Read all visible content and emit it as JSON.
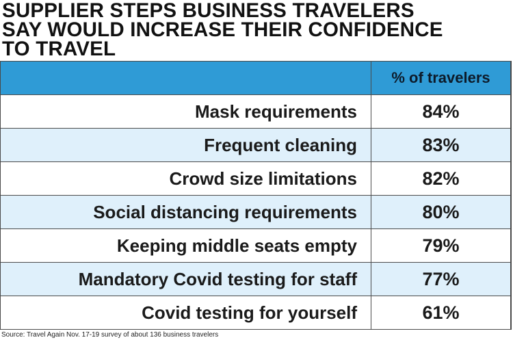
{
  "title_lines": [
    "SUPPLIER STEPS BUSINESS TRAVELERS",
    "SAY WOULD INCREASE THEIR CONFIDENCE",
    "TO TRAVEL"
  ],
  "colors": {
    "header_fill": "#2f9bd6",
    "alt_row_fill": "#dff0fb",
    "border": "#4a4a4a"
  },
  "chart_data": {
    "type": "table",
    "title": "SUPPLIER STEPS BUSINESS TRAVELERS SAY WOULD INCREASE THEIR CONFIDENCE TO TRAVEL",
    "columns": [
      "",
      "% of travelers"
    ],
    "rows": [
      {
        "label": "Mask requirements",
        "value": "84%"
      },
      {
        "label": "Frequent cleaning",
        "value": "83%"
      },
      {
        "label": "Crowd size limitations",
        "value": "82%"
      },
      {
        "label": "Social distancing requirements",
        "value": "80%"
      },
      {
        "label": "Keeping middle seats empty",
        "value": "79%"
      },
      {
        "label": "Mandatory Covid testing for staff",
        "value": "77%"
      },
      {
        "label": "Covid testing for yourself",
        "value": "61%"
      }
    ]
  },
  "source": "Source: Travel Again Nov. 17-19 survey of about 136 business travelers"
}
